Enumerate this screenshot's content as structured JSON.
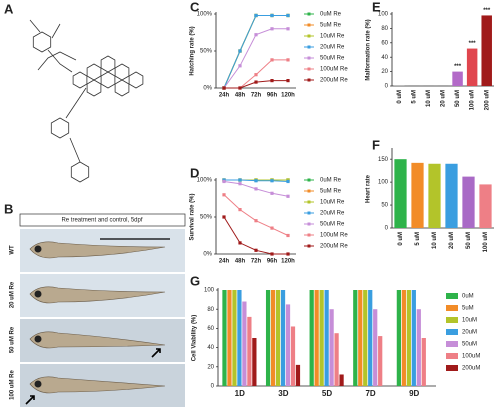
{
  "structure": {
    "panel": "A"
  },
  "fish": {
    "panel": "B",
    "header": "Re treatment and control, 5dpf",
    "rows": [
      "WT",
      "20 uM Re",
      "50 uM Re",
      "100 uM Re"
    ]
  },
  "chart_data": [
    {
      "type": "line",
      "panel": "C",
      "ylabel": "Hatching rate (%)",
      "categories": [
        "24h",
        "48h",
        "72h",
        "96h",
        "120h"
      ],
      "ylim": [
        0,
        100
      ],
      "yticks": [
        {
          "value": 0,
          "label": "0%"
        },
        {
          "value": 50,
          "label": "50%"
        },
        {
          "value": 100,
          "label": "100%"
        }
      ],
      "series": [
        {
          "name": "0uM Re",
          "color": "#2eb34a",
          "values": [
            0,
            50,
            98,
            98,
            98
          ]
        },
        {
          "name": "5uM Re",
          "color": "#f28c28",
          "values": [
            0,
            50,
            98,
            98,
            98
          ]
        },
        {
          "name": "10uM Re",
          "color": "#b3c42a",
          "values": [
            0,
            50,
            98,
            98,
            98
          ]
        },
        {
          "name": "20uM Re",
          "color": "#3a9ee0",
          "values": [
            0,
            50,
            98,
            98,
            98
          ]
        },
        {
          "name": "50uM Re",
          "color": "#c68ed8",
          "values": [
            0,
            30,
            72,
            80,
            80
          ]
        },
        {
          "name": "100uM Re",
          "color": "#ee7f86",
          "values": [
            0,
            0,
            18,
            38,
            38
          ]
        },
        {
          "name": "200uM Re",
          "color": "#a01a1a",
          "values": [
            0,
            0,
            8,
            10,
            10
          ]
        }
      ]
    },
    {
      "type": "line",
      "panel": "D",
      "ylabel": "Survival rate (%)",
      "categories": [
        "24h",
        "48h",
        "72h",
        "96h",
        "120h"
      ],
      "ylim": [
        0,
        100
      ],
      "yticks": [
        {
          "value": 0,
          "label": "0%"
        },
        {
          "value": 50,
          "label": "50%"
        },
        {
          "value": 100,
          "label": "100%"
        }
      ],
      "series": [
        {
          "name": "0uM Re",
          "color": "#2eb34a",
          "values": [
            100,
            100,
            100,
            100,
            100
          ]
        },
        {
          "name": "5uM Re",
          "color": "#f28c28",
          "values": [
            100,
            100,
            100,
            100,
            100
          ]
        },
        {
          "name": "10uM Re",
          "color": "#b3c42a",
          "values": [
            100,
            100,
            100,
            100,
            100
          ]
        },
        {
          "name": "20uM Re",
          "color": "#3a9ee0",
          "values": [
            100,
            100,
            99,
            99,
            98
          ]
        },
        {
          "name": "50uM Re",
          "color": "#c68ed8",
          "values": [
            98,
            95,
            88,
            82,
            78
          ]
        },
        {
          "name": "100uM Re",
          "color": "#ee7f86",
          "values": [
            80,
            60,
            45,
            35,
            25
          ]
        },
        {
          "name": "200uM Re",
          "color": "#a01a1a",
          "values": [
            50,
            15,
            5,
            0,
            0
          ]
        }
      ]
    },
    {
      "type": "bar",
      "panel": "E",
      "ylabel": "Malformation rate (%)",
      "categories": [
        "0 uM",
        "5 uM",
        "10 uM",
        "20 uM",
        "50 uM",
        "100 uM",
        "200 uM"
      ],
      "values": [
        0.5,
        1,
        1,
        1,
        20,
        52,
        98
      ],
      "colors": [
        "#888888",
        "#888888",
        "#888888",
        "#888888",
        "#b36ac8",
        "#e0464e",
        "#a01a1a"
      ],
      "annotations": [
        null,
        null,
        null,
        null,
        "***",
        "***",
        "***"
      ],
      "ylim": [
        0,
        100
      ],
      "yticks": [
        0,
        20,
        40,
        60,
        80,
        100
      ]
    },
    {
      "type": "bar",
      "panel": "F",
      "ylabel": "Heart rate",
      "categories": [
        "0 uM",
        "5 uM",
        "10 uM",
        "20 uM",
        "50 uM",
        "100 uM"
      ],
      "values": [
        150,
        142,
        140,
        140,
        112,
        95
      ],
      "colors": [
        "#2eb34a",
        "#f28c28",
        "#b3c42a",
        "#3a9ee0",
        "#a96ac6",
        "#ee7f86"
      ],
      "ylim": [
        0,
        170
      ],
      "yticks": [
        0,
        50,
        100,
        150
      ]
    },
    {
      "type": "grouped",
      "panel": "G",
      "ylabel": "Cell Viability (%)",
      "categories": [
        "1D",
        "3D",
        "5D",
        "7D",
        "9D"
      ],
      "ylim": [
        0,
        100
      ],
      "yticks": [
        0,
        20,
        40,
        60,
        80,
        100
      ],
      "series": [
        {
          "name": "0uM",
          "color": "#2eb34a",
          "values": [
            100,
            100,
            100,
            100,
            100
          ]
        },
        {
          "name": "5uM",
          "color": "#f28c28",
          "values": [
            100,
            100,
            100,
            100,
            100
          ]
        },
        {
          "name": "10uM",
          "color": "#b3c42a",
          "values": [
            100,
            100,
            100,
            100,
            100
          ]
        },
        {
          "name": "20uM",
          "color": "#3a9ee0",
          "values": [
            100,
            100,
            100,
            100,
            100
          ]
        },
        {
          "name": "50uM",
          "color": "#c68ed8",
          "values": [
            88,
            85,
            80,
            80,
            80
          ]
        },
        {
          "name": "100uM",
          "color": "#ee7f86",
          "values": [
            72,
            62,
            55,
            52,
            50
          ]
        },
        {
          "name": "200uM",
          "color": "#a01a1a",
          "values": [
            50,
            22,
            12,
            null,
            null
          ]
        }
      ]
    }
  ]
}
